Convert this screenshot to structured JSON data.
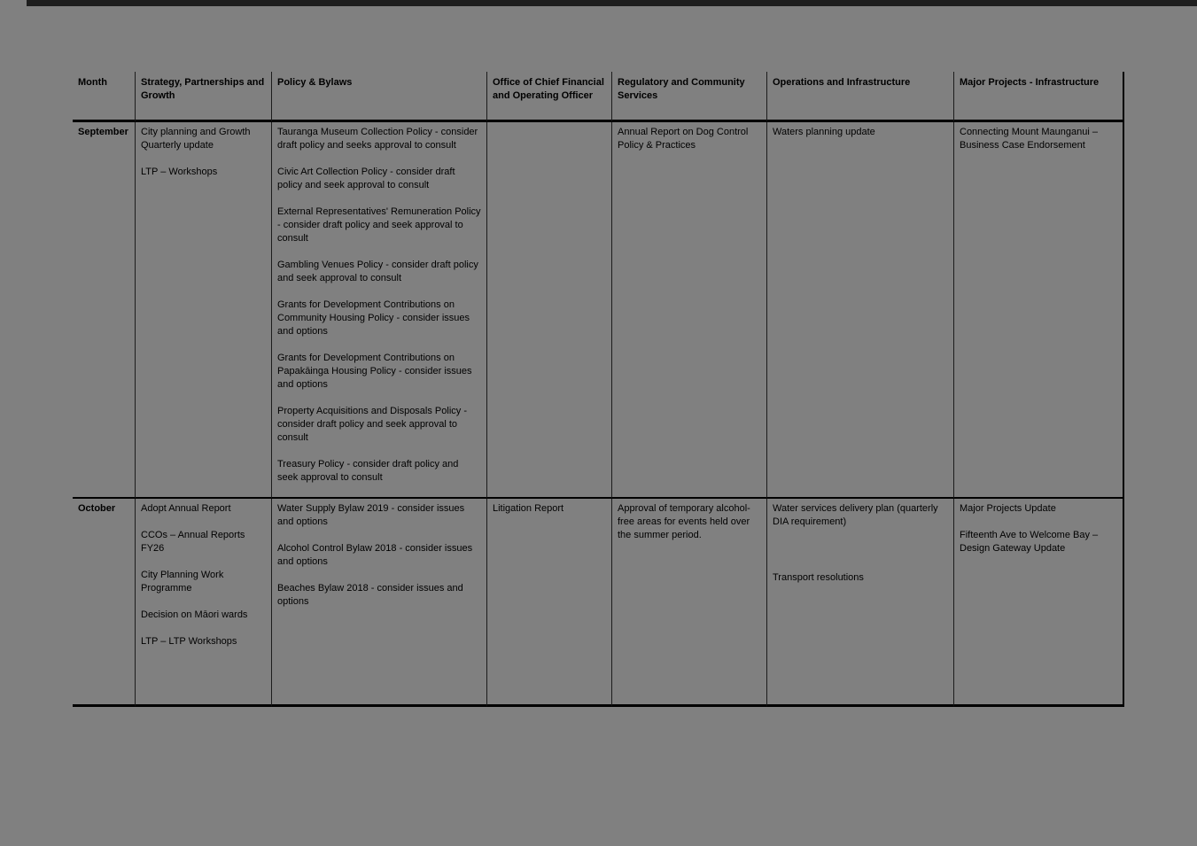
{
  "colors": {
    "page_background": "#808080",
    "text": "#000000",
    "border": "#000000"
  },
  "table": {
    "headers": [
      "Month",
      "Strategy, Partnerships and Growth",
      "Policy & Bylaws",
      "Office of Chief Financial and Operating Officer",
      "Regulatory and Community Services",
      "Operations and Infrastructure",
      "Major Projects - Infrastructure"
    ],
    "rows": [
      {
        "month": "September",
        "strategy": [
          "City planning and Growth Quarterly update",
          "LTP – Workshops"
        ],
        "policy": [
          "Tauranga Museum Collection Policy - consider draft policy and seeks approval to consult",
          "Civic Art Collection Policy - consider draft policy and seek approval to consult",
          "External Representatives' Remuneration Policy - consider draft policy and seek approval to consult",
          "Gambling Venues Policy - consider draft policy and seek approval to consult",
          "Grants for Development Contributions on Community Housing Policy - consider issues and options",
          "Grants for Development Contributions on Papakāinga Housing Policy - consider issues and options",
          "Property Acquisitions and Disposals Policy - consider draft policy and seek approval to consult",
          "Treasury Policy - consider draft policy and seek approval to consult"
        ],
        "cfo": [],
        "regulatory": [
          "Annual Report on Dog Control Policy & Practices"
        ],
        "operations": [
          "Waters planning update"
        ],
        "major_projects": [
          "Connecting Mount Maunganui – Business Case Endorsement"
        ]
      },
      {
        "month": "October",
        "strategy": [
          "Adopt Annual Report",
          "CCOs – Annual Reports FY26",
          "City Planning Work Programme",
          "Decision on Māori wards",
          "LTP – LTP Workshops"
        ],
        "policy": [
          "Water Supply Bylaw 2019 - consider issues and options",
          "Alcohol Control Bylaw 2018 - consider issues and options",
          "Beaches Bylaw 2018 - consider issues and options"
        ],
        "cfo": [
          "Litigation Report"
        ],
        "regulatory": [
          "Approval of temporary alcohol-free areas for events held over the summer period."
        ],
        "operations": [
          "Water services delivery plan (quarterly DIA requirement)",
          "Transport resolutions"
        ],
        "major_projects": [
          "Major Projects Update",
          "Fifteenth Ave to Welcome Bay – Design Gateway Update"
        ]
      }
    ]
  }
}
